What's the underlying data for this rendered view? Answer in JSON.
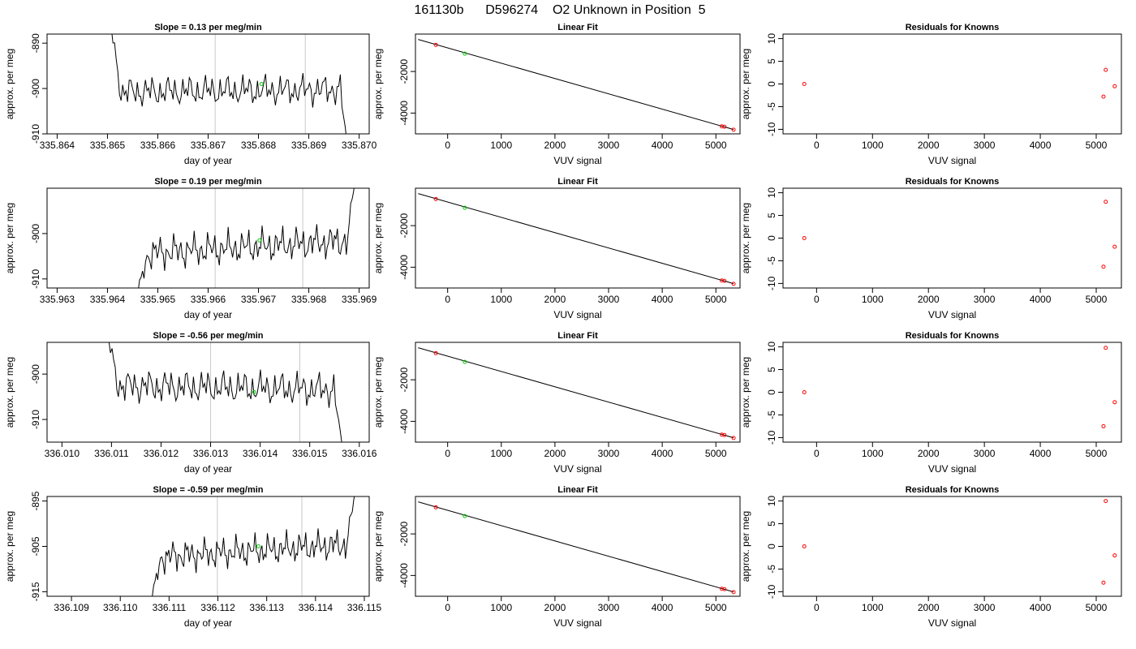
{
  "page_title": "161130b      D596274    O2 Unknown in Position  5",
  "chart_data": [
    {
      "type": "line",
      "title": "Slope =  0.13  per meg/min",
      "xlabel": "day of year",
      "ylabel": "approx. per meg",
      "xlim": [
        335.8638,
        335.8702
      ],
      "ylim": [
        -910,
        -888
      ],
      "xticks": [
        "335.864",
        "335.865",
        "335.866",
        "335.867",
        "335.868",
        "335.869",
        "335.870"
      ],
      "yticks": [
        "-910",
        "-900",
        "-890"
      ],
      "series_start": 335.86498,
      "series_end": 335.86982,
      "curve_start": -880,
      "curve_end": -918,
      "level": -900.5,
      "trend": 0.6,
      "noise": 2.3,
      "marker": {
        "x": 335.86806,
        "y": -899,
        "color": "#00cc00"
      },
      "vlines": [
        335.86714,
        335.86893
      ]
    },
    {
      "type": "scatter",
      "title": "Linear Fit",
      "xlabel": "VUV signal",
      "ylabel": "approx. per meg",
      "xlim": [
        -600,
        5450
      ],
      "ylim": [
        -5000,
        -200
      ],
      "xticks": [
        "0",
        "1000",
        "2000",
        "3000",
        "4000",
        "5000"
      ],
      "yticks": [
        "-4000",
        "-2000"
      ],
      "fit_line": {
        "x": [
          -550,
          5330
        ],
        "y": [
          -460,
          -4790
        ]
      },
      "points": [
        {
          "x": -220,
          "y": -720,
          "color": "#ff0000"
        },
        {
          "x": 320,
          "y": -1140,
          "color": "#00cc00"
        },
        {
          "x": 5110,
          "y": -4640,
          "color": "#ff0000"
        },
        {
          "x": 5160,
          "y": -4660,
          "color": "#ff0000"
        },
        {
          "x": 5330,
          "y": -4800,
          "color": "#ff0000"
        }
      ]
    },
    {
      "type": "scatter",
      "title": "Residuals for Knowns",
      "xlabel": "VUV signal",
      "ylabel": "approx. per meg",
      "xlim": [
        -600,
        5450
      ],
      "ylim": [
        -11,
        11
      ],
      "xticks": [
        "0",
        "1000",
        "2000",
        "3000",
        "4000",
        "5000"
      ],
      "yticks": [
        "-10",
        "-5",
        "0",
        "5",
        "10"
      ],
      "points": [
        {
          "x": -220,
          "y": 0,
          "color": "#ff0000"
        },
        {
          "x": 5130,
          "y": -2.8,
          "color": "#ff0000"
        },
        {
          "x": 5170,
          "y": 3.1,
          "color": "#ff0000"
        },
        {
          "x": 5330,
          "y": -0.5,
          "color": "#ff0000"
        }
      ]
    },
    {
      "type": "line",
      "title": "Slope =  0.19  per meg/min",
      "xlabel": "day of year",
      "ylabel": "approx. per meg",
      "xlim": [
        335.9628,
        335.9692
      ],
      "ylim": [
        -912,
        -890
      ],
      "xticks": [
        "335.963",
        "335.964",
        "335.965",
        "335.966",
        "335.967",
        "335.968",
        "335.969"
      ],
      "yticks": [
        "-910",
        "-900"
      ],
      "series_start": 335.96455,
      "series_end": 335.96895,
      "curve_start": -915,
      "curve_end": -884,
      "level": -903,
      "trend": 3,
      "noise": 2.5,
      "marker": {
        "x": 335.96702,
        "y": -901.5,
        "color": "#00cc00"
      },
      "vlines": [
        335.96614,
        335.96788
      ]
    },
    {
      "type": "scatter",
      "title": "Linear Fit",
      "xlabel": "VUV signal",
      "ylabel": "approx. per meg",
      "xlim": [
        -600,
        5450
      ],
      "ylim": [
        -5000,
        -200
      ],
      "xticks": [
        "0",
        "1000",
        "2000",
        "3000",
        "4000",
        "5000"
      ],
      "yticks": [
        "-4000",
        "-2000"
      ],
      "fit_line": {
        "x": [
          -550,
          5330
        ],
        "y": [
          -460,
          -4790
        ]
      },
      "points": [
        {
          "x": -220,
          "y": -720,
          "color": "#ff0000"
        },
        {
          "x": 320,
          "y": -1140,
          "color": "#00cc00"
        },
        {
          "x": 5110,
          "y": -4640,
          "color": "#ff0000"
        },
        {
          "x": 5160,
          "y": -4660,
          "color": "#ff0000"
        },
        {
          "x": 5330,
          "y": -4800,
          "color": "#ff0000"
        }
      ]
    },
    {
      "type": "scatter",
      "title": "Residuals for Knowns",
      "xlabel": "VUV signal",
      "ylabel": "approx. per meg",
      "xlim": [
        -600,
        5450
      ],
      "ylim": [
        -11,
        11
      ],
      "xticks": [
        "0",
        "1000",
        "2000",
        "3000",
        "4000",
        "5000"
      ],
      "yticks": [
        "-10",
        "-5",
        "0",
        "5",
        "10"
      ],
      "points": [
        {
          "x": -220,
          "y": 0,
          "color": "#ff0000"
        },
        {
          "x": 5130,
          "y": -6.3,
          "color": "#ff0000"
        },
        {
          "x": 5170,
          "y": 8,
          "color": "#ff0000"
        },
        {
          "x": 5330,
          "y": -1.9,
          "color": "#ff0000"
        }
      ]
    },
    {
      "type": "line",
      "title": "Slope =  -0.56  per meg/min",
      "xlabel": "day of year",
      "ylabel": "approx. per meg",
      "xlim": [
        336.0097,
        336.0162
      ],
      "ylim": [
        -915,
        -893
      ],
      "xticks": [
        "336.010",
        "336.011",
        "336.012",
        "336.013",
        "336.014",
        "336.015",
        "336.016"
      ],
      "yticks": [
        "-910",
        "-900"
      ],
      "series_start": 336.01085,
      "series_end": 336.01568,
      "curve_start": -888,
      "curve_end": -918,
      "level": -903,
      "trend": -1,
      "noise": 2.5,
      "marker": {
        "x": 336.01388,
        "y": -904,
        "color": "#00cc00"
      },
      "vlines": [
        336.013,
        336.0148
      ]
    },
    {
      "type": "scatter",
      "title": "Linear Fit",
      "xlabel": "VUV signal",
      "ylabel": "approx. per meg",
      "xlim": [
        -600,
        5450
      ],
      "ylim": [
        -5000,
        -200
      ],
      "xticks": [
        "0",
        "1000",
        "2000",
        "3000",
        "4000",
        "5000"
      ],
      "yticks": [
        "-4000",
        "-2000"
      ],
      "fit_line": {
        "x": [
          -550,
          5330
        ],
        "y": [
          -460,
          -4790
        ]
      },
      "points": [
        {
          "x": -220,
          "y": -720,
          "color": "#ff0000"
        },
        {
          "x": 320,
          "y": -1140,
          "color": "#00cc00"
        },
        {
          "x": 5110,
          "y": -4640,
          "color": "#ff0000"
        },
        {
          "x": 5160,
          "y": -4660,
          "color": "#ff0000"
        },
        {
          "x": 5330,
          "y": -4800,
          "color": "#ff0000"
        }
      ]
    },
    {
      "type": "scatter",
      "title": "Residuals for Knowns",
      "xlabel": "VUV signal",
      "ylabel": "approx. per meg",
      "xlim": [
        -600,
        5450
      ],
      "ylim": [
        -11,
        11
      ],
      "xticks": [
        "0",
        "1000",
        "2000",
        "3000",
        "4000",
        "5000"
      ],
      "yticks": [
        "-10",
        "-5",
        "0",
        "5",
        "10"
      ],
      "points": [
        {
          "x": -220,
          "y": 0,
          "color": "#ff0000"
        },
        {
          "x": 5130,
          "y": -7.5,
          "color": "#ff0000"
        },
        {
          "x": 5170,
          "y": 9.8,
          "color": "#ff0000"
        },
        {
          "x": 5330,
          "y": -2.2,
          "color": "#ff0000"
        }
      ]
    },
    {
      "type": "line",
      "title": "Slope =  -0.59  per meg/min",
      "xlabel": "day of year",
      "ylabel": "approx. per meg",
      "xlim": [
        336.1085,
        336.1151
      ],
      "ylim": [
        -916,
        -894
      ],
      "xticks": [
        "336.109",
        "336.110",
        "336.111",
        "336.112",
        "336.113",
        "336.114",
        "336.115"
      ],
      "yticks": [
        "-915",
        "-905",
        "-895"
      ],
      "series_start": 336.1106,
      "series_end": 336.11481,
      "curve_start": -918,
      "curve_end": -893,
      "level": -906,
      "trend": 3,
      "noise": 2.3,
      "marker": {
        "x": 336.11283,
        "y": -905,
        "color": "#00cc00"
      },
      "vlines": [
        336.11199,
        336.11372
      ]
    },
    {
      "type": "scatter",
      "title": "Linear Fit",
      "xlabel": "VUV signal",
      "ylabel": "approx. per meg",
      "xlim": [
        -600,
        5450
      ],
      "ylim": [
        -5000,
        -200
      ],
      "xticks": [
        "0",
        "1000",
        "2000",
        "3000",
        "4000",
        "5000"
      ],
      "yticks": [
        "-4000",
        "-2000"
      ],
      "fit_line": {
        "x": [
          -550,
          5330
        ],
        "y": [
          -460,
          -4790
        ]
      },
      "points": [
        {
          "x": -220,
          "y": -720,
          "color": "#ff0000"
        },
        {
          "x": 320,
          "y": -1140,
          "color": "#00cc00"
        },
        {
          "x": 5110,
          "y": -4640,
          "color": "#ff0000"
        },
        {
          "x": 5160,
          "y": -4660,
          "color": "#ff0000"
        },
        {
          "x": 5330,
          "y": -4800,
          "color": "#ff0000"
        }
      ]
    },
    {
      "type": "scatter",
      "title": "Residuals for Knowns",
      "xlabel": "VUV signal",
      "ylabel": "approx. per meg",
      "xlim": [
        -600,
        5450
      ],
      "ylim": [
        -11,
        11
      ],
      "xticks": [
        "0",
        "1000",
        "2000",
        "3000",
        "4000",
        "5000"
      ],
      "yticks": [
        "-10",
        "-5",
        "0",
        "5",
        "10"
      ],
      "points": [
        {
          "x": -220,
          "y": 0,
          "color": "#ff0000"
        },
        {
          "x": 5130,
          "y": -8,
          "color": "#ff0000"
        },
        {
          "x": 5170,
          "y": 10,
          "color": "#ff0000"
        },
        {
          "x": 5330,
          "y": -2,
          "color": "#ff0000"
        }
      ]
    }
  ]
}
